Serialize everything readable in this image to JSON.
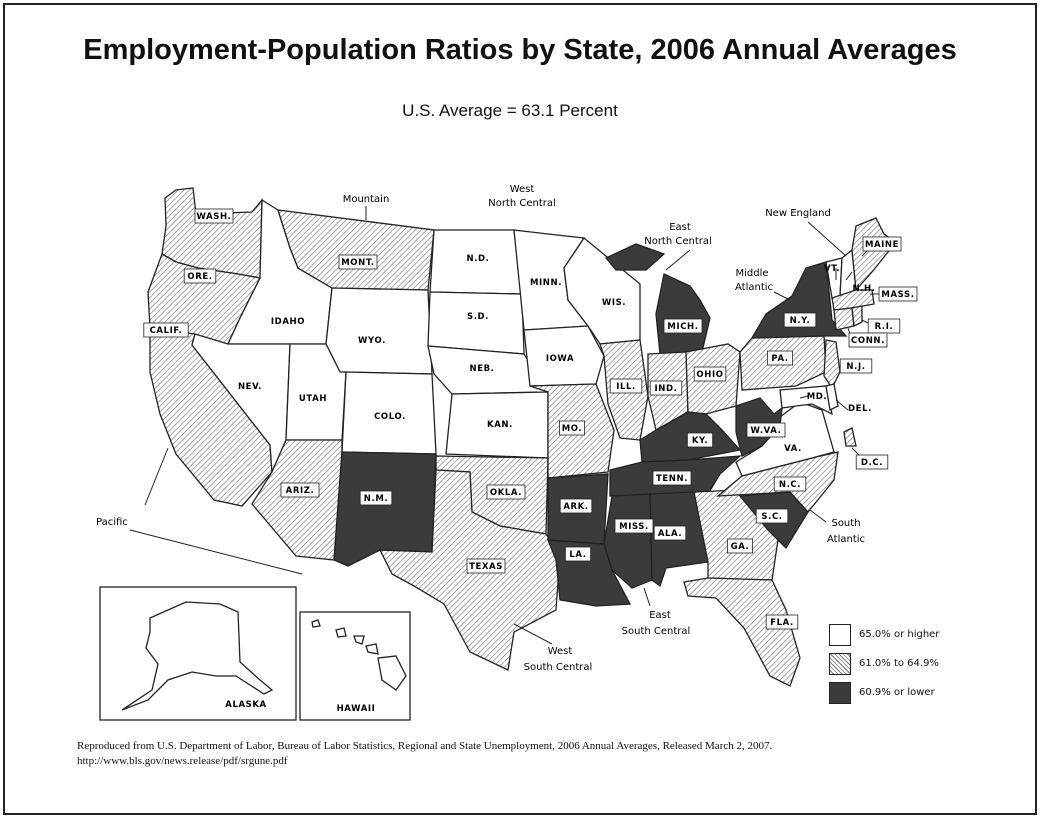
{
  "title": "Employment-Population Ratios by State, 2006 Annual Averages",
  "subtitle": "U.S. Average = 63.1 Percent",
  "legend": [
    {
      "label": "65.0% or higher",
      "category": "high"
    },
    {
      "label": "61.0% to 64.9%",
      "category": "mid"
    },
    {
      "label": "60.9% or lower",
      "category": "low"
    }
  ],
  "colors": {
    "high": "#ffffff",
    "mid": "hatched",
    "low": "#3b3b3b",
    "outline": "#222222"
  },
  "states": [
    {
      "label": "WASH.",
      "category": "mid"
    },
    {
      "label": "ORE.",
      "category": "mid"
    },
    {
      "label": "CALIF.",
      "category": "mid"
    },
    {
      "label": "IDAHO",
      "category": "high"
    },
    {
      "label": "NEV.",
      "category": "high"
    },
    {
      "label": "MONT.",
      "category": "mid"
    },
    {
      "label": "WYO.",
      "category": "high"
    },
    {
      "label": "UTAH",
      "category": "high"
    },
    {
      "label": "COLO.",
      "category": "high"
    },
    {
      "label": "ARIZ.",
      "category": "mid"
    },
    {
      "label": "N.M.",
      "category": "low"
    },
    {
      "label": "N.D.",
      "category": "high"
    },
    {
      "label": "S.D.",
      "category": "high"
    },
    {
      "label": "NEB.",
      "category": "high"
    },
    {
      "label": "KAN.",
      "category": "high"
    },
    {
      "label": "OKLA.",
      "category": "mid"
    },
    {
      "label": "TEXAS",
      "category": "mid"
    },
    {
      "label": "MINN.",
      "category": "high"
    },
    {
      "label": "IOWA",
      "category": "high"
    },
    {
      "label": "MO.",
      "category": "mid"
    },
    {
      "label": "ARK.",
      "category": "low"
    },
    {
      "label": "LA.",
      "category": "low"
    },
    {
      "label": "WIS.",
      "category": "high"
    },
    {
      "label": "ILL.",
      "category": "mid"
    },
    {
      "label": "MICH.",
      "category": "low"
    },
    {
      "label": "IND.",
      "category": "mid"
    },
    {
      "label": "OHIO",
      "category": "mid"
    },
    {
      "label": "KY.",
      "category": "low"
    },
    {
      "label": "TENN.",
      "category": "low"
    },
    {
      "label": "MISS.",
      "category": "low"
    },
    {
      "label": "ALA.",
      "category": "low"
    },
    {
      "label": "GA.",
      "category": "mid"
    },
    {
      "label": "FLA.",
      "category": "mid"
    },
    {
      "label": "S.C.",
      "category": "low"
    },
    {
      "label": "N.C.",
      "category": "mid"
    },
    {
      "label": "VA.",
      "category": "high"
    },
    {
      "label": "W.VA.",
      "category": "low"
    },
    {
      "label": "PA.",
      "category": "mid"
    },
    {
      "label": "N.Y.",
      "category": "low"
    },
    {
      "label": "MAINE",
      "category": "mid"
    },
    {
      "label": "VT.",
      "category": "high"
    },
    {
      "label": "N.H.",
      "category": "high"
    },
    {
      "label": "MASS.",
      "category": "mid"
    },
    {
      "label": "R.I.",
      "category": "mid"
    },
    {
      "label": "CONN.",
      "category": "mid"
    },
    {
      "label": "N.J.",
      "category": "mid"
    },
    {
      "label": "MD.",
      "category": "high"
    },
    {
      "label": "DEL.",
      "category": "high"
    },
    {
      "label": "D.C.",
      "category": "mid"
    },
    {
      "label": "ALASKA",
      "category": "high"
    },
    {
      "label": "HAWAII",
      "category": "high"
    }
  ],
  "regions": {
    "pacific": "Pacific",
    "mountain": "Mountain",
    "west_north_central": "West North Central",
    "east_north_central": "East North Central",
    "new_england": "New England",
    "middle_atlantic": "Middle Atlantic",
    "south_atlantic": "South Atlantic",
    "east_south_central": "East South Central",
    "west_south_central": "West South Central"
  },
  "credit": {
    "line1": "Reproduced from U.S. Department of Labor, Bureau of Labor Statistics, Regional and State Unemployment, 2006 Annual Averages, Released March 2, 2007.",
    "line2": "http://www.bls.gov/news.release/pdf/srgune.pdf"
  }
}
